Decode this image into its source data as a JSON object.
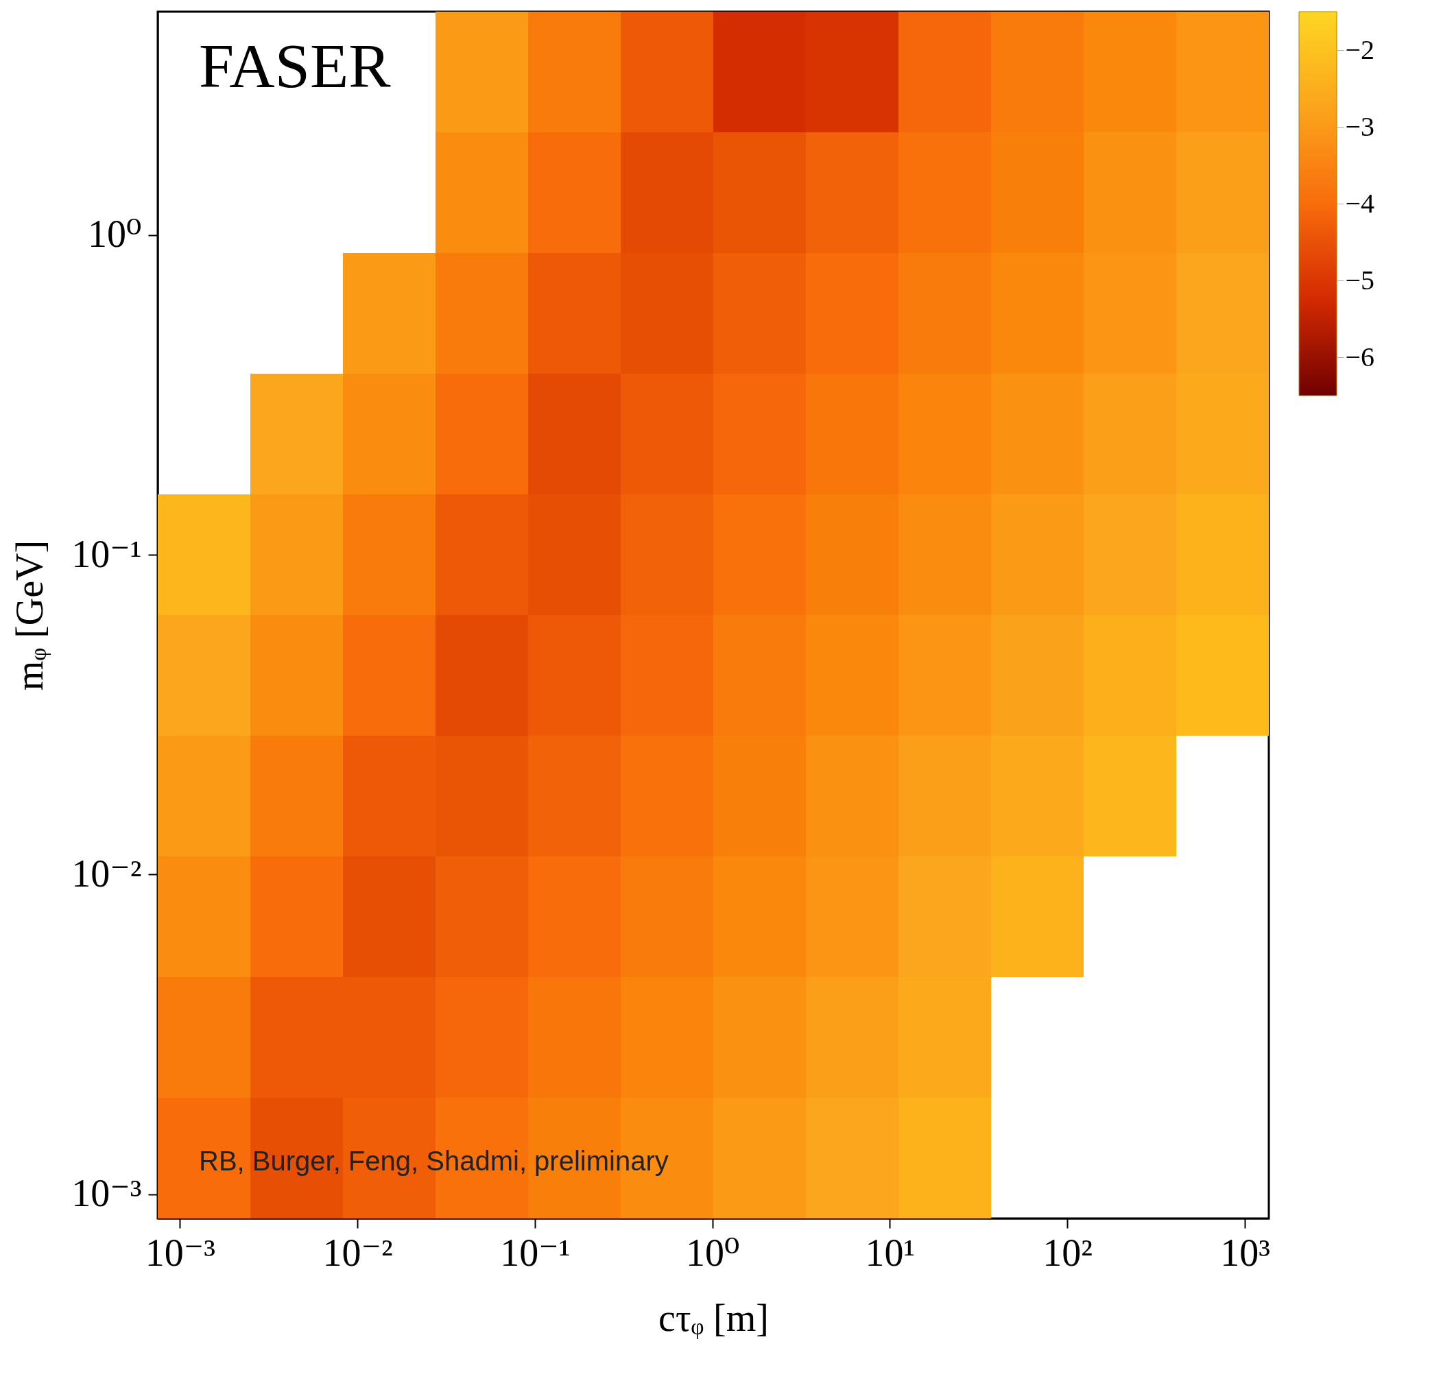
{
  "chart_data": {
    "type": "heatmap",
    "xlabel": "cτᵩ [m]",
    "ylabel": "mᵩ [GeV]",
    "annotations": [
      "FASER",
      "RB, Burger, Feng, Shadmi, preliminary"
    ],
    "log": "xy",
    "xlim": [
      0.00075,
      1365
    ],
    "ylim": [
      0.00084,
      5.0
    ],
    "xticks": [
      {
        "value": 0.001,
        "label": "10⁻³"
      },
      {
        "value": 0.01,
        "label": "10⁻²"
      },
      {
        "value": 0.1,
        "label": "10⁻¹"
      },
      {
        "value": 1,
        "label": "10⁰"
      },
      {
        "value": 10,
        "label": "10¹"
      },
      {
        "value": 100,
        "label": "10²"
      },
      {
        "value": 1000,
        "label": "10³"
      }
    ],
    "yticks": [
      {
        "value": 0.001,
        "label": "10⁻³"
      },
      {
        "value": 0.01,
        "label": "10⁻²"
      },
      {
        "value": 0.1,
        "label": "10⁻¹"
      },
      {
        "value": 1,
        "label": "10⁰"
      }
    ],
    "clim": [
      -6.5,
      -1.5
    ],
    "cticks": [
      {
        "value": -2,
        "label": "−2"
      },
      {
        "value": -3,
        "label": "−3"
      },
      {
        "value": -4,
        "label": "−4"
      },
      {
        "value": -5,
        "label": "−5"
      },
      {
        "value": -6,
        "label": "−6"
      }
    ],
    "colors": [
      "#700000",
      "#d42a02",
      "#f86c0c",
      "#fba41c",
      "#fed623"
    ],
    "grid": false,
    "cells": [
      [
        null,
        null,
        null,
        -3.0,
        -3.7,
        -4.4,
        -5.2,
        -5.1,
        -4.1,
        -3.7,
        -3.4,
        -3.1
      ],
      [
        null,
        null,
        null,
        -3.3,
        -4.0,
        -4.7,
        -4.5,
        -4.2,
        -3.9,
        -3.6,
        -3.2,
        -2.9
      ],
      [
        null,
        null,
        -3.0,
        -3.7,
        -4.4,
        -4.6,
        -4.3,
        -4.0,
        -3.7,
        -3.4,
        -3.1,
        -2.7
      ],
      [
        null,
        -2.7,
        -3.3,
        -4.0,
        -4.7,
        -4.4,
        -4.1,
        -3.8,
        -3.5,
        -3.2,
        -2.9,
        -2.6
      ],
      [
        -2.3,
        -3.0,
        -3.7,
        -4.4,
        -4.6,
        -4.2,
        -3.9,
        -3.6,
        -3.3,
        -3.0,
        -2.7,
        -2.4
      ],
      [
        -2.7,
        -3.3,
        -4.0,
        -4.7,
        -4.4,
        -4.1,
        -3.7,
        -3.4,
        -3.1,
        -2.8,
        -2.5,
        -2.2
      ],
      [
        -3.0,
        -3.7,
        -4.4,
        -4.5,
        -4.2,
        -3.9,
        -3.6,
        -3.2,
        -2.9,
        -2.6,
        -2.3,
        null
      ],
      [
        -3.3,
        -4.0,
        -4.6,
        -4.3,
        -4.0,
        -3.7,
        -3.4,
        -3.1,
        -2.7,
        -2.4,
        null,
        null
      ],
      [
        -3.7,
        -4.4,
        -4.4,
        -4.1,
        -3.8,
        -3.5,
        -3.2,
        -2.9,
        -2.6,
        null,
        null,
        null
      ],
      [
        -4.0,
        -4.6,
        -4.3,
        -3.9,
        -3.6,
        -3.3,
        -3.0,
        -2.7,
        -2.4,
        null,
        null,
        null
      ]
    ]
  }
}
